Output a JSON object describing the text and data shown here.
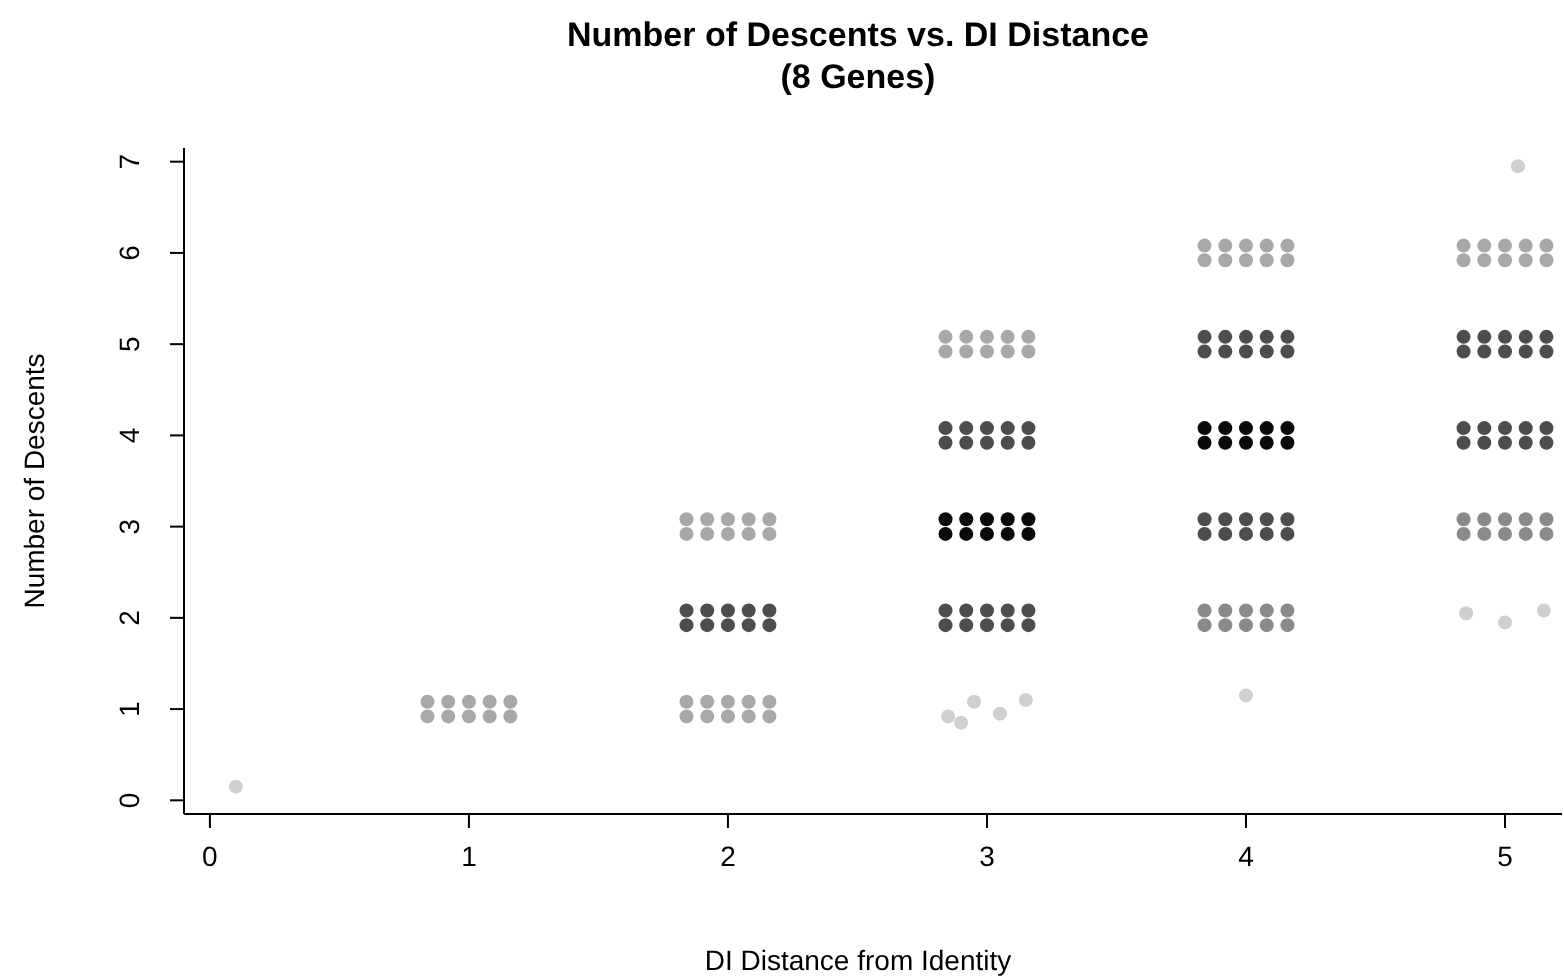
{
  "chart_data": {
    "type": "scatter",
    "title": "Number of Descents vs. DI Distance\n(8 Genes)",
    "xlabel": "DI Distance from Identity",
    "ylabel": "Number of Descents",
    "xlim": [
      -0.1,
      5.22
    ],
    "xticks": [
      0,
      1,
      2,
      3,
      4,
      5
    ],
    "ylim": [
      -0.15,
      7.15
    ],
    "yticks": [
      0,
      1,
      2,
      3,
      4,
      5,
      6,
      7
    ],
    "grid": false,
    "marker": "circle",
    "series": [
      {
        "color": "#cfcfcf",
        "x": [
          2.85,
          2.95,
          3.05,
          3.15,
          2.9,
          4.85,
          5.0,
          5.15,
          0.1,
          4.0,
          5.05
        ],
        "values": [
          0.92,
          1.08,
          0.95,
          1.1,
          0.85,
          2.05,
          1.95,
          2.08,
          0.15,
          1.15,
          6.95
        ]
      },
      {
        "color": "#a8a8a8",
        "x": [
          0.84,
          0.92,
          1,
          1.08,
          1.16,
          0.84,
          0.92,
          1,
          1.08,
          1.16,
          1.84,
          1.92,
          2,
          2.08,
          2.16,
          1.84,
          1.92,
          2,
          2.08,
          2.16,
          1.84,
          1.92,
          2,
          2.08,
          2.16,
          1.84,
          1.92,
          2,
          2.08,
          2.16,
          2.84,
          2.92,
          3,
          3.08,
          3.16,
          2.84,
          2.92,
          3,
          3.08,
          3.16,
          3.84,
          3.92,
          4,
          4.08,
          4.16,
          3.84,
          3.92,
          4,
          4.08,
          4.16,
          4.84,
          4.92,
          5,
          5.08,
          5.16,
          4.84,
          4.92,
          5,
          5.08,
          5.16
        ],
        "values": [
          0.92,
          0.92,
          0.92,
          0.92,
          0.92,
          1.08,
          1.08,
          1.08,
          1.08,
          1.08,
          0.92,
          0.92,
          0.92,
          0.92,
          0.92,
          1.08,
          1.08,
          1.08,
          1.08,
          1.08,
          2.92,
          2.92,
          2.92,
          2.92,
          2.92,
          3.08,
          3.08,
          3.08,
          3.08,
          3.08,
          4.92,
          4.92,
          4.92,
          4.92,
          4.92,
          5.08,
          5.08,
          5.08,
          5.08,
          5.08,
          5.92,
          5.92,
          5.92,
          5.92,
          5.92,
          6.08,
          6.08,
          6.08,
          6.08,
          6.08,
          5.92,
          5.92,
          5.92,
          5.92,
          5.92,
          6.08,
          6.08,
          6.08,
          6.08,
          6.08
        ]
      },
      {
        "color": "#8a8a8a",
        "x": [
          3.84,
          3.92,
          4,
          4.08,
          4.16,
          3.84,
          3.92,
          4,
          4.08,
          4.16,
          4.84,
          4.92,
          5,
          5.08,
          5.16,
          4.84,
          4.92,
          5,
          5.08,
          5.16
        ],
        "values": [
          1.92,
          1.92,
          1.92,
          1.92,
          1.92,
          2.08,
          2.08,
          2.08,
          2.08,
          2.08,
          2.92,
          2.92,
          2.92,
          2.92,
          2.92,
          3.08,
          3.08,
          3.08,
          3.08,
          3.08
        ]
      },
      {
        "color": "#4d4d4d",
        "x": [
          1.84,
          1.92,
          2,
          2.08,
          2.16,
          1.84,
          1.92,
          2,
          2.08,
          2.16,
          2.84,
          2.92,
          3,
          3.08,
          3.16,
          2.84,
          2.92,
          3,
          3.08,
          3.16,
          2.84,
          2.92,
          3,
          3.08,
          3.16,
          2.84,
          2.92,
          3,
          3.08,
          3.16,
          3.84,
          3.92,
          4,
          4.08,
          4.16,
          3.84,
          3.92,
          4,
          4.08,
          4.16,
          3.84,
          3.92,
          4,
          4.08,
          4.16,
          3.84,
          3.92,
          4,
          4.08,
          4.16,
          4.84,
          4.92,
          5,
          5.08,
          5.16,
          4.84,
          4.92,
          5,
          5.08,
          5.16,
          4.84,
          4.92,
          5,
          5.08,
          5.16,
          4.84,
          4.92,
          5,
          5.08,
          5.16
        ],
        "values": [
          1.92,
          1.92,
          1.92,
          1.92,
          1.92,
          2.08,
          2.08,
          2.08,
          2.08,
          2.08,
          1.92,
          1.92,
          1.92,
          1.92,
          1.92,
          2.08,
          2.08,
          2.08,
          2.08,
          2.08,
          3.92,
          3.92,
          3.92,
          3.92,
          3.92,
          4.08,
          4.08,
          4.08,
          4.08,
          4.08,
          2.92,
          2.92,
          2.92,
          2.92,
          2.92,
          3.08,
          3.08,
          3.08,
          3.08,
          3.08,
          4.92,
          4.92,
          4.92,
          4.92,
          4.92,
          5.08,
          5.08,
          5.08,
          5.08,
          5.08,
          3.92,
          3.92,
          3.92,
          3.92,
          3.92,
          4.08,
          4.08,
          4.08,
          4.08,
          4.08,
          4.92,
          4.92,
          4.92,
          4.92,
          4.92,
          5.08,
          5.08,
          5.08,
          5.08,
          5.08
        ]
      },
      {
        "color": "#0a0a0a",
        "x": [
          2.84,
          2.92,
          3,
          3.08,
          3.16,
          2.84,
          2.92,
          3,
          3.08,
          3.16,
          3.84,
          3.92,
          4,
          4.08,
          4.16,
          3.84,
          3.92,
          4,
          4.08,
          4.16
        ],
        "values": [
          2.92,
          2.92,
          2.92,
          2.92,
          2.92,
          3.08,
          3.08,
          3.08,
          3.08,
          3.08,
          3.92,
          3.92,
          3.92,
          3.92,
          3.92,
          4.08,
          4.08,
          4.08,
          4.08,
          4.08
        ]
      }
    ]
  }
}
